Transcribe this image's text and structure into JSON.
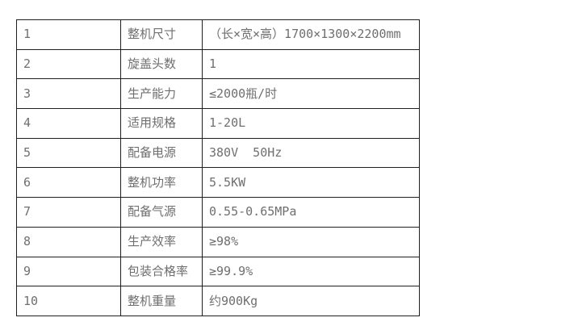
{
  "colors": {
    "background": "#ffffff",
    "border": "#1f1f1f",
    "text": "#6f6f6f"
  },
  "table": {
    "columns": [
      "no",
      "label",
      "value"
    ],
    "rows": [
      {
        "no": "1",
        "label": "整机尺寸",
        "value": "（长×宽×高）1700×1300×2200mm"
      },
      {
        "no": "2",
        "label": "旋盖头数",
        "value": "1"
      },
      {
        "no": "3",
        "label": "生产能力",
        "value": "≤2000瓶/时"
      },
      {
        "no": "4",
        "label": "适用规格",
        "value": "1-20L"
      },
      {
        "no": "5",
        "label": "配备电源",
        "value": "380V  50Hz"
      },
      {
        "no": "6",
        "label": "整机功率",
        "value": "5.5KW"
      },
      {
        "no": "7",
        "label": "配备气源",
        "value": "0.55-0.65MPa"
      },
      {
        "no": "8",
        "label": "生产效率",
        "value": "≥98%"
      },
      {
        "no": "9",
        "label": "包装合格率",
        "value": "≥99.9%"
      },
      {
        "no": "10",
        "label": "整机重量",
        "value": "约900Kg"
      }
    ]
  }
}
